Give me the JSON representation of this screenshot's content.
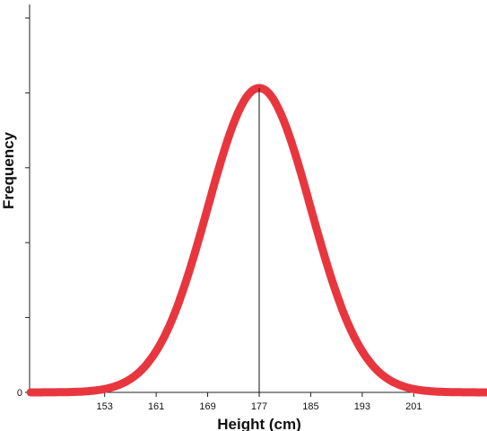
{
  "chart_data": {
    "type": "line",
    "title": "",
    "xlabel": "Height (cm)",
    "ylabel": "Frequency",
    "x_ticks": [
      153,
      161,
      169,
      177,
      185,
      193,
      201
    ],
    "x_range": [
      141,
      213
    ],
    "y_tick_labels": [
      "0"
    ],
    "y_tick_count": 6,
    "curve": {
      "kind": "normal",
      "mean": 177,
      "sd": 8
    },
    "mean_marker": 177,
    "series": [
      {
        "color": "#e8363f"
      }
    ],
    "grid": false,
    "legend": "none"
  }
}
